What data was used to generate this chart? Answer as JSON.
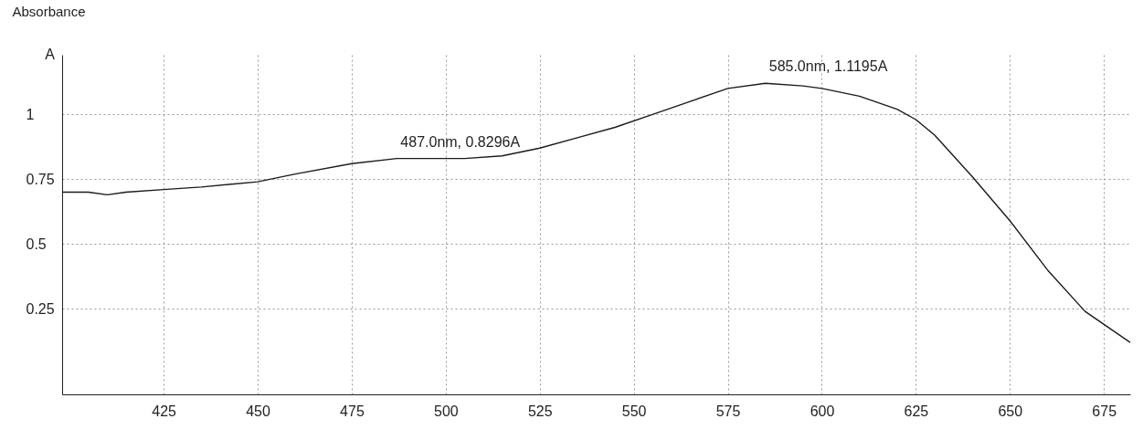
{
  "chart_data": {
    "type": "line",
    "ylabel": "Absorbance",
    "x": [
      398,
      405,
      410,
      415,
      425,
      435,
      450,
      460,
      475,
      487,
      495,
      505,
      515,
      525,
      535,
      545,
      555,
      565,
      575,
      585,
      595,
      600,
      610,
      620,
      625,
      630,
      635,
      640,
      650,
      660,
      670,
      682
    ],
    "series": [
      {
        "color": "#1a1a1a",
        "values": [
          0.7,
          0.7,
          0.69,
          0.7,
          0.71,
          0.72,
          0.74,
          0.77,
          0.81,
          0.83,
          0.83,
          0.83,
          0.84,
          0.87,
          0.91,
          0.95,
          1.0,
          1.05,
          1.1,
          1.12,
          1.11,
          1.1,
          1.07,
          1.02,
          0.98,
          0.92,
          0.84,
          0.76,
          0.59,
          0.4,
          0.24,
          0.12
        ]
      }
    ],
    "xlim": [
      398,
      682
    ],
    "xticks": [
      425,
      450,
      475,
      500,
      525,
      550,
      575,
      600,
      625,
      650,
      675
    ],
    "ylim": [
      -0.08,
      1.23
    ],
    "yticks": [
      0.25,
      0.5,
      0.75,
      1
    ],
    "grid": true,
    "line_style": "solid",
    "annotations": [
      "A",
      {
        "text": "487.0nm, 0.8296A",
        "x": 487,
        "y": 0.8296
      },
      {
        "text": "585.0nm, 1.1195A",
        "x": 585,
        "y": 1.1195
      }
    ]
  }
}
